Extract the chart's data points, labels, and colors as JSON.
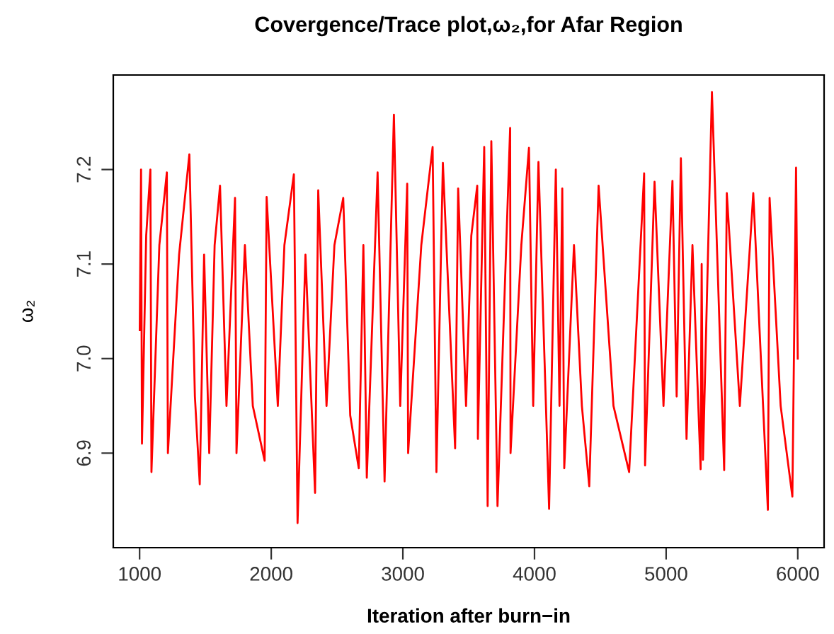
{
  "chart_data": {
    "type": "line",
    "title": "Covergence/Trace plot,ω₂,for Afar Region",
    "xlabel": "Iteration after burn−in",
    "ylabel": "ω₂",
    "series": [
      {
        "color": "#ff0000",
        "x": [
          1001,
          1011,
          1018,
          1050,
          1082,
          1090,
          1150,
          1207,
          1215,
          1300,
          1378,
          1420,
          1457,
          1490,
          1529,
          1570,
          1611,
          1660,
          1725,
          1736,
          1800,
          1860,
          1950,
          1965,
          2050,
          2100,
          2172,
          2200,
          2260,
          2333,
          2357,
          2420,
          2480,
          2547,
          2600,
          2665,
          2700,
          2726,
          2808,
          2861,
          2932,
          2980,
          3033,
          3040,
          3140,
          3226,
          3255,
          3304,
          3397,
          3420,
          3480,
          3520,
          3565,
          3570,
          3618,
          3644,
          3672,
          3719,
          3815,
          3818,
          3900,
          3958,
          3990,
          4030,
          4111,
          4162,
          4190,
          4211,
          4226,
          4300,
          4360,
          4416,
          4487,
          4600,
          4719,
          4833,
          4840,
          4912,
          4980,
          5048,
          5080,
          5112,
          5155,
          5200,
          5262,
          5270,
          5280,
          5348,
          5441,
          5461,
          5560,
          5662,
          5773,
          5786,
          5870,
          5959,
          5987,
          6000
        ],
        "values": [
          7.03,
          7.2,
          6.91,
          7.13,
          7.2,
          6.88,
          7.12,
          7.197,
          6.9,
          7.11,
          7.216,
          6.96,
          6.867,
          7.11,
          6.9,
          7.12,
          7.183,
          6.95,
          7.17,
          6.9,
          7.12,
          6.95,
          6.892,
          7.171,
          6.95,
          7.12,
          7.195,
          6.826,
          7.11,
          6.858,
          7.178,
          6.95,
          7.12,
          7.17,
          6.94,
          6.884,
          7.12,
          6.874,
          7.197,
          6.87,
          7.258,
          6.95,
          7.185,
          6.9,
          7.12,
          7.224,
          6.88,
          7.207,
          6.905,
          7.18,
          6.95,
          7.13,
          7.183,
          6.915,
          7.224,
          6.844,
          7.23,
          6.844,
          7.244,
          6.9,
          7.12,
          7.223,
          6.95,
          7.208,
          6.841,
          7.2,
          6.95,
          7.18,
          6.884,
          7.12,
          6.95,
          6.865,
          7.183,
          6.95,
          6.88,
          7.196,
          6.887,
          7.187,
          6.95,
          7.188,
          6.96,
          7.212,
          6.915,
          7.12,
          6.883,
          7.1,
          6.893,
          7.282,
          6.882,
          7.175,
          6.95,
          7.175,
          6.84,
          7.17,
          6.95,
          6.854,
          7.202,
          7.0
        ]
      }
    ],
    "xlim": [
      800,
      6200
    ],
    "ylim": [
      6.8,
      7.3
    ],
    "xticks": [
      1000,
      2000,
      3000,
      4000,
      5000,
      6000
    ],
    "yticks": [
      6.9,
      {
        "value": 7.0,
        "label": "7.0"
      },
      7.1,
      7.2
    ],
    "grid": false,
    "legend": false
  }
}
